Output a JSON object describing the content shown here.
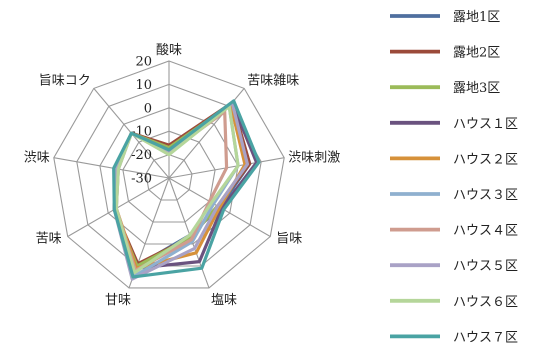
{
  "chart_data": {
    "type": "radar",
    "axes": [
      "酸味",
      "苦味雑味",
      "渋味刺激",
      "旨味",
      "塩味",
      "甘味",
      "苦味",
      "渋味",
      "旨味コク"
    ],
    "ticks": [
      "20",
      "10",
      "0",
      "-10",
      "-20",
      "-30"
    ],
    "rlim": [
      -30,
      20
    ],
    "grid": true,
    "legend_position": "right",
    "series": [
      {
        "name": "露地1区",
        "color": "#4f6f9f",
        "values": [
          -17,
          11,
          5,
          -5,
          -4,
          10,
          -3,
          -7,
          -5
        ]
      },
      {
        "name": "露地2区",
        "color": "#9b4a3a",
        "values": [
          -16,
          12,
          5,
          -6,
          -3,
          9,
          -3,
          -7,
          -5
        ]
      },
      {
        "name": "露地3区",
        "color": "#9bbb59",
        "values": [
          -17,
          11,
          4,
          -6,
          -3,
          10,
          -3,
          -7,
          -5
        ]
      },
      {
        "name": "ハウス１区",
        "color": "#6a527f",
        "values": [
          -18,
          12,
          8,
          -4,
          8,
          11,
          -3,
          -7,
          -5
        ]
      },
      {
        "name": "ハウス２区",
        "color": "#d6913a",
        "values": [
          -18,
          11,
          3,
          -5,
          4,
          11,
          -4,
          -7,
          -5
        ]
      },
      {
        "name": "ハウス３区",
        "color": "#8fb0cf",
        "values": [
          -19,
          10,
          0,
          -8,
          -1,
          15,
          -4,
          -8,
          -5
        ]
      },
      {
        "name": "ハウス４区",
        "color": "#cf9c8f",
        "values": [
          -19,
          7,
          -5,
          -10,
          -2,
          12,
          -4,
          -8,
          -5
        ]
      },
      {
        "name": "ハウス５区",
        "color": "#a9a2c6",
        "values": [
          -19,
          12,
          4,
          -6,
          2,
          16,
          -3,
          -7,
          -5
        ]
      },
      {
        "name": "ハウス６区",
        "color": "#b5d69a",
        "values": [
          -20,
          10,
          0,
          -9,
          -4,
          13,
          -4,
          -8,
          -5
        ]
      },
      {
        "name": "ハウス７区",
        "color": "#4aa3a3",
        "values": [
          -18,
          13,
          9,
          -3,
          11,
          15,
          -3,
          -6,
          -5
        ]
      }
    ]
  }
}
